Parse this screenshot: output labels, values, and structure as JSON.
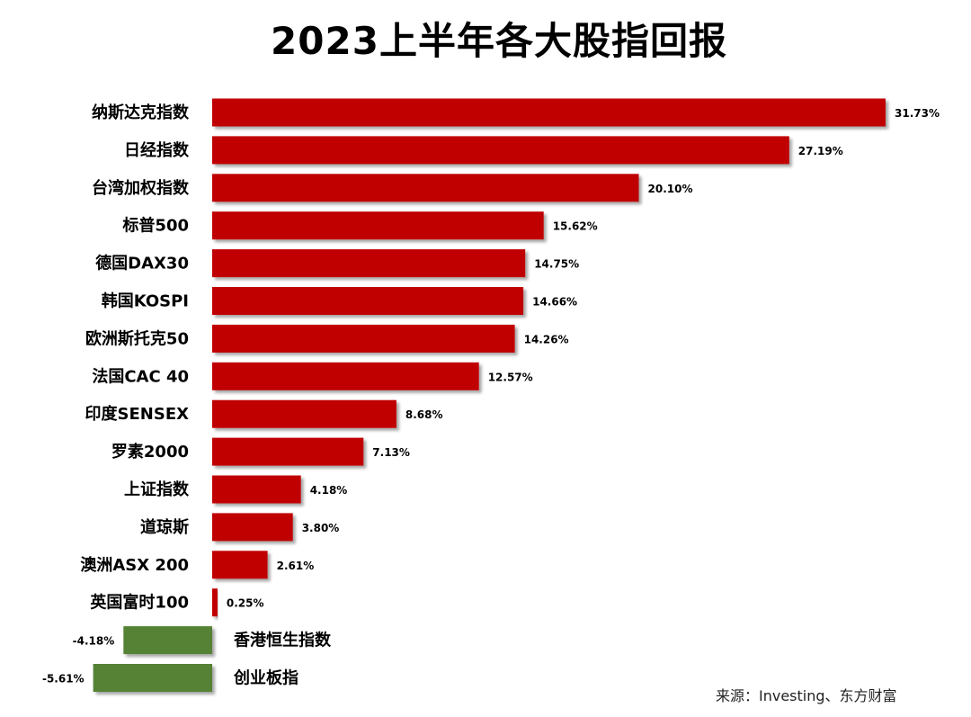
{
  "chart_data": {
    "type": "bar",
    "orientation": "horizontal",
    "title": "2023上半年各大股指回报",
    "categories": [
      "纳斯达克指数",
      "日经指数",
      "台湾加权指数",
      "标普500",
      "德国DAX30",
      "韩国KOSPI",
      "欧洲斯托克50",
      "法国CAC 40",
      "印度SENSEX",
      "罗素2000",
      "上证指数",
      "道琼斯",
      "澳洲ASX 200",
      "英国富时100",
      "香港恒生指数",
      "创业板指"
    ],
    "values": [
      31.73,
      27.19,
      20.1,
      15.62,
      14.75,
      14.66,
      14.26,
      12.57,
      8.68,
      7.13,
      4.18,
      3.8,
      2.61,
      0.25,
      -4.18,
      -5.61
    ],
    "value_labels": [
      "31.73%",
      "27.19%",
      "20.10%",
      "15.62%",
      "14.75%",
      "14.66%",
      "14.26%",
      "12.57%",
      "8.68%",
      "7.13%",
      "4.18%",
      "3.80%",
      "2.61%",
      "0.25%",
      "-4.18%",
      "-5.61%"
    ],
    "colors": {
      "positive": "#C00000",
      "negative": "#548235"
    },
    "grid": false,
    "legend": "none"
  },
  "source_text": "来源：Investing、东方财富"
}
